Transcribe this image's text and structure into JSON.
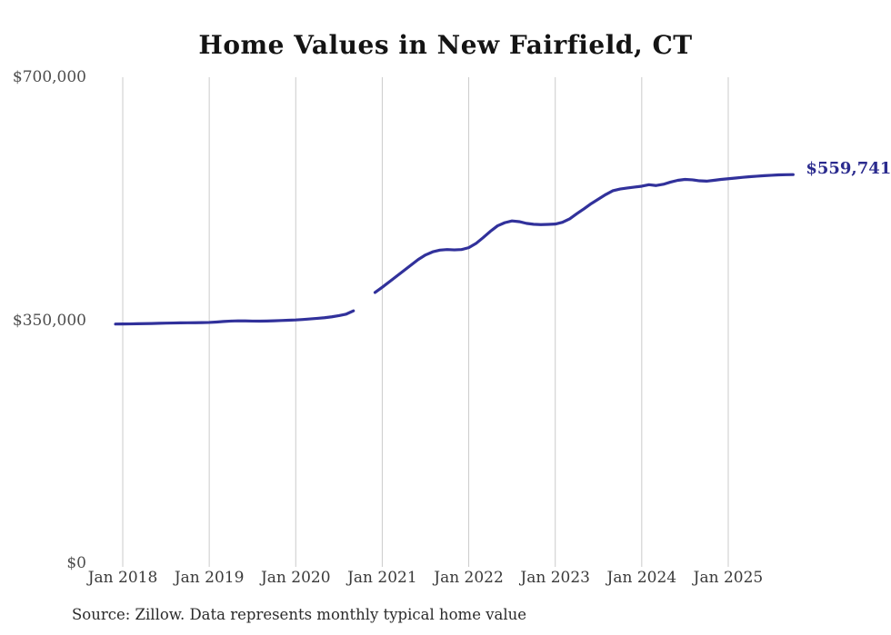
{
  "chart_data": {
    "type": "line",
    "title": "Home Values in New Fairfield, CT",
    "source": "Source: Zillow. Data represents monthly typical home value",
    "end_label": "$559,741",
    "last_value": 559741,
    "line_color": "#31319b",
    "end_label_color": "#2b2b8e",
    "grid_color": "#cbcbcb",
    "ylim": [
      0,
      700000
    ],
    "legend": "none",
    "grid": "vertical-only",
    "y_ticks": [
      {
        "label": "$700,000",
        "value": 700000
      },
      {
        "label": "$350,000",
        "value": 350000
      },
      {
        "label": "$0",
        "value": 0
      }
    ],
    "x_tick_labels": [
      "Jan 2018",
      "Jan 2019",
      "Jan 2020",
      "Jan 2021",
      "Jan 2022",
      "Jan 2023",
      "Jan 2024",
      "Jan 2025"
    ],
    "months": [
      "2017-12",
      "2018-01",
      "2018-02",
      "2018-03",
      "2018-04",
      "2018-05",
      "2018-06",
      "2018-07",
      "2018-08",
      "2018-09",
      "2018-10",
      "2018-11",
      "2018-12",
      "2019-01",
      "2019-02",
      "2019-03",
      "2019-04",
      "2019-05",
      "2019-06",
      "2019-07",
      "2019-08",
      "2019-09",
      "2019-10",
      "2019-11",
      "2019-12",
      "2020-01",
      "2020-02",
      "2020-03",
      "2020-04",
      "2020-05",
      "2020-06",
      "2020-07",
      "2020-08",
      "2020-09",
      "2020-10",
      "2020-11",
      "2020-12",
      "2021-01",
      "2021-02",
      "2021-03",
      "2021-04",
      "2021-05",
      "2021-06",
      "2021-07",
      "2021-08",
      "2021-09",
      "2021-10",
      "2021-11",
      "2021-12",
      "2022-01",
      "2022-02",
      "2022-03",
      "2022-04",
      "2022-05",
      "2022-06",
      "2022-07",
      "2022-08",
      "2022-09",
      "2022-10",
      "2022-11",
      "2022-12",
      "2023-01",
      "2023-02",
      "2023-03",
      "2023-04",
      "2023-05",
      "2023-06",
      "2023-07",
      "2023-08",
      "2023-09",
      "2023-10",
      "2023-11",
      "2023-12",
      "2024-01",
      "2024-02",
      "2024-03",
      "2024-04",
      "2024-05",
      "2024-06",
      "2024-07",
      "2024-08",
      "2024-09",
      "2024-10",
      "2024-11",
      "2024-12",
      "2025-01",
      "2025-02",
      "2025-03",
      "2025-04",
      "2025-05",
      "2025-06",
      "2025-07",
      "2025-08",
      "2025-09",
      "2025-10"
    ],
    "values": [
      344500,
      344600,
      344700,
      344900,
      345100,
      345300,
      345600,
      345800,
      346000,
      346200,
      346300,
      346400,
      346600,
      346800,
      347400,
      348200,
      348800,
      349100,
      349000,
      348800,
      348700,
      348900,
      349200,
      349600,
      350000,
      350400,
      351100,
      351900,
      352700,
      353600,
      354900,
      356600,
      358800,
      363500,
      null,
      null,
      390000,
      397500,
      405500,
      413500,
      421500,
      429500,
      437500,
      444000,
      448500,
      451000,
      451800,
      451300,
      451800,
      454500,
      460500,
      469000,
      478000,
      486000,
      490500,
      493000,
      492000,
      489500,
      488200,
      487700,
      488000,
      488500,
      491000,
      496000,
      503500,
      510500,
      518000,
      524500,
      531000,
      536500,
      539000,
      540500,
      541800,
      543000,
      545200,
      544000,
      545800,
      549000,
      551500,
      552800,
      552200,
      550800,
      550300,
      551500,
      552800,
      553800,
      554800,
      555800,
      556700,
      557500,
      558200,
      558800,
      559300,
      559600,
      559741
    ],
    "data_gap_months": [
      "2020-10",
      "2020-11"
    ]
  }
}
